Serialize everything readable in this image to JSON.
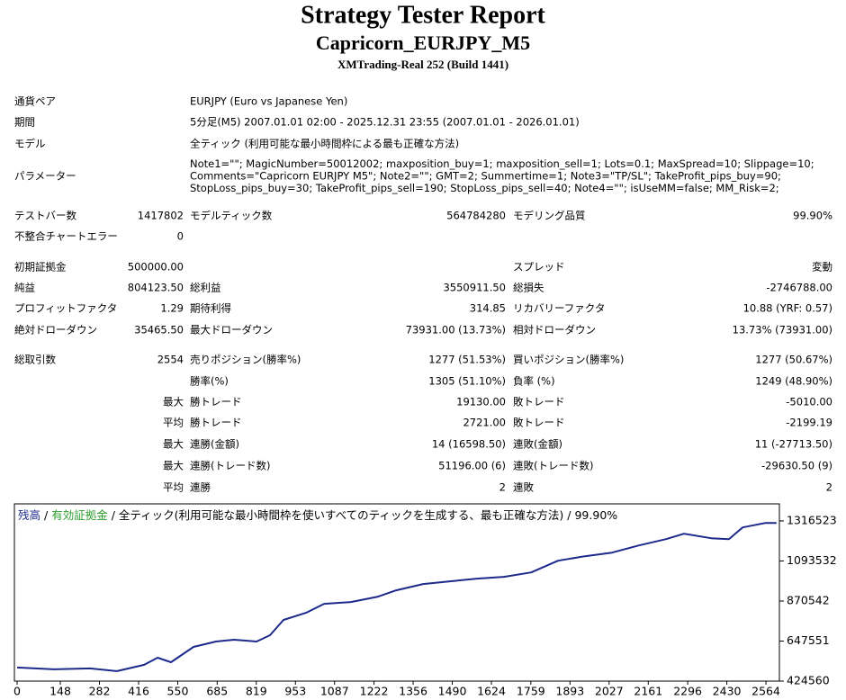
{
  "header": {
    "title": "Strategy Tester Report",
    "subtitle": "Capricorn_EURJPY_M5",
    "build": "XMTrading-Real 252 (Build 1441)"
  },
  "info": [
    {
      "label": "通貨ペア",
      "value": [
        "EURJPY (Euro vs Japanese Yen)"
      ]
    },
    {
      "label": "期間",
      "value": [
        "5分足(M5) 2007.01.01 02:00 - 2025.12.31 23:55 (2007.01.01 - 2026.01.01)"
      ]
    },
    {
      "label": "モデル",
      "value": [
        "全ティック (利用可能な最小時間枠による最も正確な方法)"
      ]
    },
    {
      "label": "パラメーター",
      "value": [
        "Note1=\"\"; MagicNumber=50012002; maxposition_buy=1; maxposition_sell=1; Lots=0.1; MaxSpread=10; Slippage=10;",
        "Comments=\"Capricorn EURJPY M5\"; Note2=\"\"; GMT=2; Summertime=1; Note3=\"TP/SL\"; TakeProfit_pips_buy=90;",
        "StopLoss_pips_buy=30; TakeProfit_pips_sell=190; StopLoss_pips_sell=40; Note4=\"\"; isUseMM=false; MM_Risk=2;"
      ]
    }
  ],
  "stats": [
    [
      "テストバー数",
      "1417802",
      "モデルティック数",
      "564784280",
      "モデリング品質",
      "99.90%"
    ],
    [
      "不整合チャートエラー",
      "0",
      null,
      null,
      null,
      null
    ],
    [
      "初期証拠金",
      "500000.00",
      null,
      null,
      "スプレッド",
      "変動"
    ],
    [
      "純益",
      "804123.50",
      "総利益",
      "3550911.50",
      "総損失",
      "-2746788.00"
    ],
    [
      "プロフィットファクタ",
      "1.29",
      "期待利得",
      "314.85",
      "リカバリーファクタ",
      "10.88 (YRF: 0.57)"
    ],
    [
      "絶対ドローダウン",
      "35465.50",
      "最大ドローダウン",
      "73931.00 (13.73%)",
      "相対ドローダウン",
      "13.73% (73931.00)"
    ],
    [
      "総取引数",
      "2554",
      "売りポジション(勝率%)",
      "1277 (51.53%)",
      "買いポジション(勝率%)",
      "1277 (50.67%)"
    ],
    [
      null,
      null,
      "勝率(%)",
      "1305 (51.10%)",
      "負率 (%)",
      "1249 (48.90%)"
    ],
    [
      null,
      "最大",
      "勝トレード",
      "19130.00",
      "敗トレード",
      "-5010.00"
    ],
    [
      null,
      "平均",
      "勝トレード",
      "2721.00",
      "敗トレード",
      "-2199.19"
    ],
    [
      null,
      "最大",
      "連勝(金額)",
      "14 (16598.50)",
      "連敗(金額)",
      "11 (-27713.50)"
    ],
    [
      null,
      "最大",
      "連勝(トレード数)",
      "51196.00 (6)",
      "連敗(トレード数)",
      "-29630.50 (9)"
    ],
    [
      null,
      "平均",
      "連勝",
      "2",
      "連敗",
      "2"
    ]
  ],
  "chart_data": {
    "type": "line",
    "legend_separator": "/",
    "equity_label": "有効証拠金",
    "equity_color": "#2e9e2e",
    "model_label": "全ティック(利用可能な最小時間枠を使いすべてのティックを生成する、最も正確な方法)",
    "quality_label": "99.90%",
    "x": [
      0,
      126,
      250,
      342,
      435,
      481,
      527,
      604,
      681,
      743,
      820,
      866,
      912,
      989,
      1051,
      1143,
      1236,
      1298,
      1390,
      1482,
      1575,
      1667,
      1760,
      1852,
      1944,
      2037,
      2129,
      2222,
      2283,
      2376,
      2437,
      2484,
      2561,
      2600
    ],
    "series": [
      {
        "name": "残高",
        "color": "#1c2a8c",
        "values": [
          500000,
          490000,
          495000,
          480000,
          515000,
          555000,
          530000,
          615000,
          645000,
          655000,
          645000,
          680000,
          765000,
          805000,
          855000,
          865000,
          895000,
          930000,
          965000,
          980000,
          995000,
          1005000,
          1030000,
          1095000,
          1120000,
          1140000,
          1180000,
          1215000,
          1245000,
          1220000,
          1215000,
          1280000,
          1305000,
          1305000
        ]
      }
    ],
    "xlim": [
      0,
      2610
    ],
    "xticks": [
      0,
      148,
      282,
      416,
      550,
      685,
      819,
      953,
      1087,
      1222,
      1356,
      1490,
      1624,
      1759,
      1893,
      2027,
      2161,
      2296,
      2430,
      2564
    ],
    "ylim": [
      424560,
      1411500
    ],
    "yticks": [
      424560,
      647551,
      870542,
      1093532,
      1316523
    ]
  }
}
